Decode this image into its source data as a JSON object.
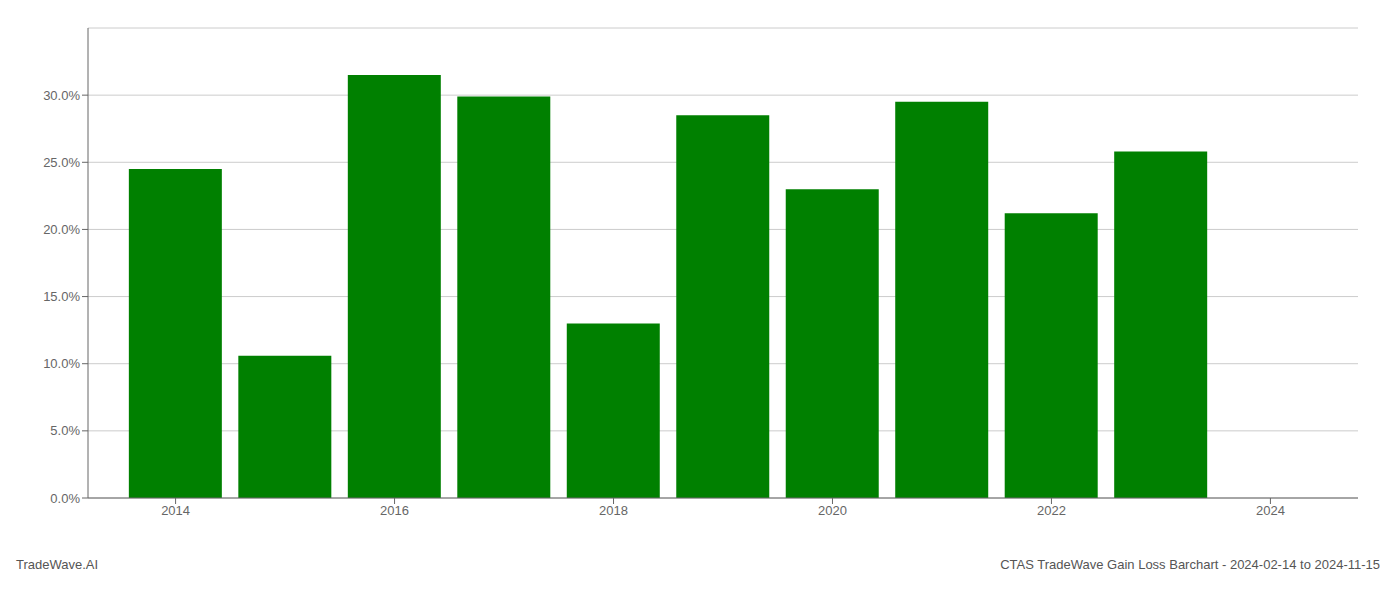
{
  "chart_data": {
    "type": "bar",
    "x": [
      2014,
      2015,
      2016,
      2017,
      2018,
      2019,
      2020,
      2021,
      2022,
      2023
    ],
    "values": [
      0.245,
      0.106,
      0.315,
      0.299,
      0.13,
      0.285,
      0.23,
      0.295,
      0.212,
      0.258
    ],
    "color": "#008000",
    "xlim": [
      2013.2,
      2024.8
    ],
    "xticks": [
      2014,
      2016,
      2018,
      2020,
      2022,
      2024
    ],
    "ylim": [
      0,
      0.35
    ],
    "yticks": [
      {
        "value": 0.0,
        "label": "0.0%"
      },
      {
        "value": 0.05,
        "label": "5.0%"
      },
      {
        "value": 0.1,
        "label": "10.0%"
      },
      {
        "value": 0.15,
        "label": "15.0%"
      },
      {
        "value": 0.2,
        "label": "20.0%"
      },
      {
        "value": 0.25,
        "label": "25.0%"
      },
      {
        "value": 0.3,
        "label": "30.0%"
      }
    ],
    "grid": "y",
    "annotations": [
      "TradeWave.AI",
      "CTAS TradeWave Gain Loss Barchart - 2024-02-14 to 2024-11-15"
    ]
  }
}
